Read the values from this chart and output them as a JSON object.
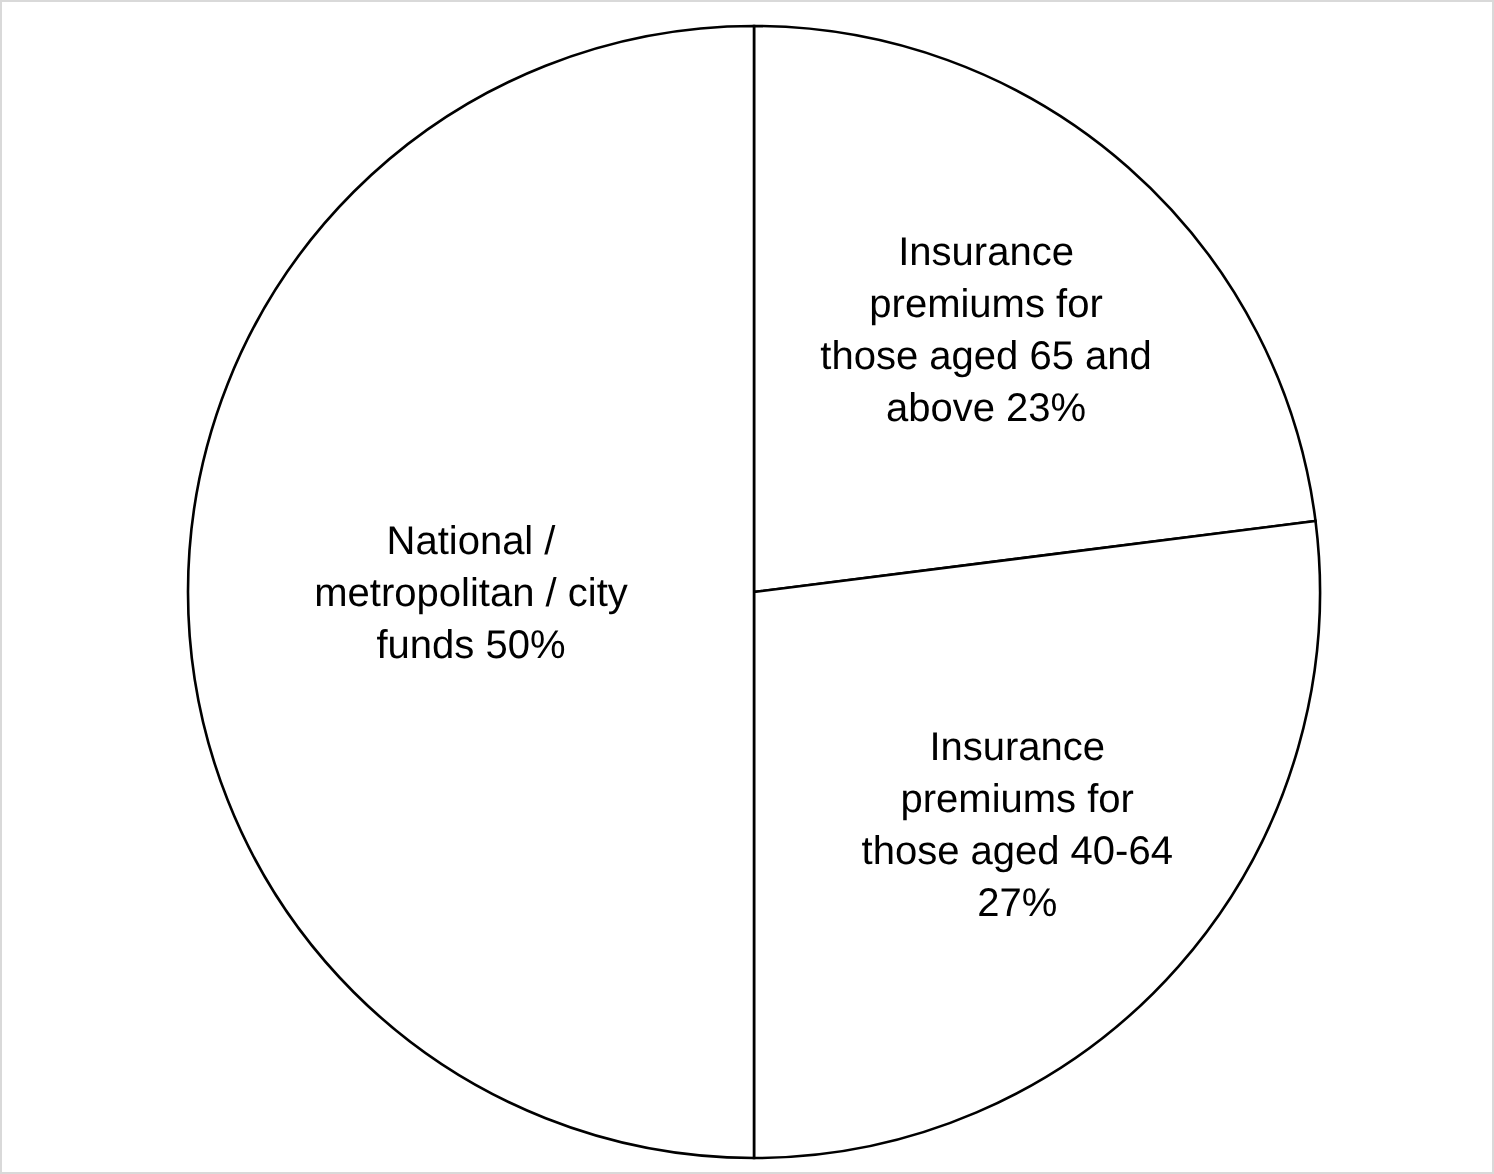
{
  "chart_data": {
    "type": "pie",
    "categories": [
      "Insurance premiums for those aged 65 and above",
      "Insurance premiums for those aged 40-64",
      "National / metropolitan / city funds"
    ],
    "values": [
      23,
      27,
      50
    ],
    "value_labels": [
      "23%",
      "27%",
      "50%"
    ],
    "colors": [
      "#ffffff",
      "#ffffff",
      "#ffffff"
    ]
  }
}
